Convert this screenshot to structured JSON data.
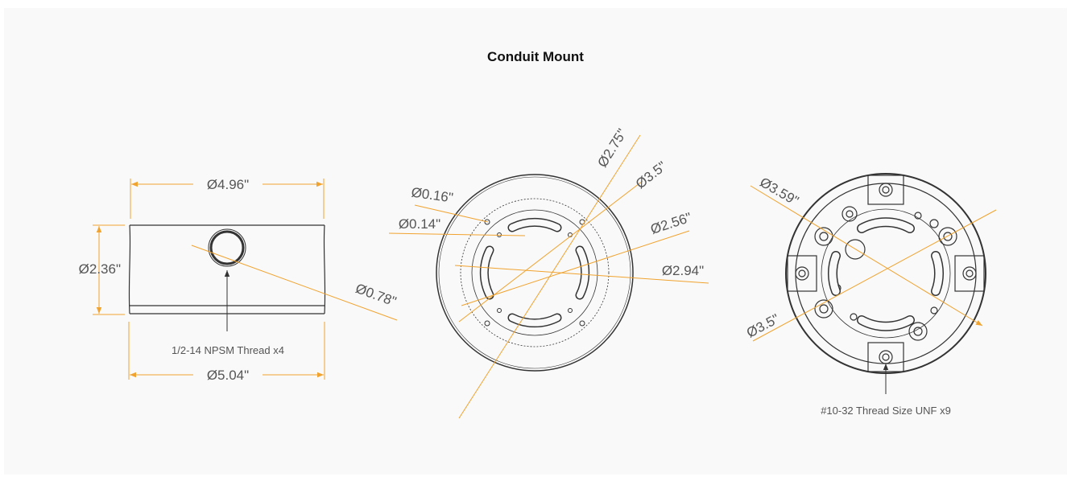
{
  "title": "Conduit Mount",
  "side_view": {
    "labels": [
      "Ø4.96\"",
      "Ø2.36\"",
      "Ø0.78\"",
      "1/2-14 NPSM Thread x4",
      "Ø5.04\""
    ]
  },
  "front_view": {
    "labels": [
      "Ø0.16\"",
      "Ø0.14\"",
      "Ø2.75\"",
      "Ø3.5\"",
      "Ø2.56\"",
      "Ø2.94\""
    ]
  },
  "back_view": {
    "labels": [
      "Ø3.59\"",
      "Ø3.5\"",
      "#10-32 Thread Size UNF x9"
    ]
  }
}
